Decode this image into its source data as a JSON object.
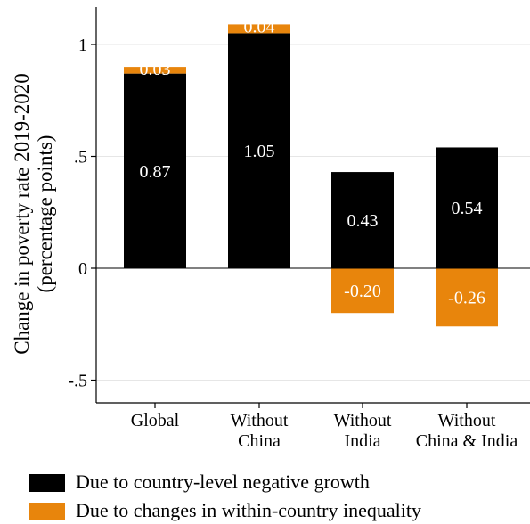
{
  "colors": {
    "negative_growth": "#000000",
    "inequality": "#e8850c",
    "bar_label": "#ffffff",
    "grid": "#e6e6e6"
  },
  "chart_data": {
    "type": "bar",
    "stacked": true,
    "title": "",
    "ylabel": [
      "Change in poverty rate 2019-2020",
      "(percentage points)"
    ],
    "xlabel": "",
    "ylim": [
      -0.6,
      1.17
    ],
    "yticks": [
      {
        "value": -0.5,
        "label": "-.5"
      },
      {
        "value": 0,
        "label": "0"
      },
      {
        "value": 0.5,
        "label": ".5"
      },
      {
        "value": 1,
        "label": "1"
      }
    ],
    "grid": true,
    "categories": [
      [
        "Global"
      ],
      [
        "Without",
        "China"
      ],
      [
        "Without",
        "India"
      ],
      [
        "Without",
        "China & India"
      ]
    ],
    "series": [
      {
        "name": "Due to country-level negative growth",
        "color": "#000000",
        "values": [
          0.87,
          1.05,
          0.43,
          0.54
        ],
        "labels": [
          "0.87",
          "1.05",
          "0.43",
          "0.54"
        ]
      },
      {
        "name": "Due to changes in within-country inequality",
        "color": "#e8850c",
        "values": [
          0.03,
          0.04,
          -0.2,
          -0.26
        ],
        "labels": [
          "0.03",
          "0.04",
          "-0.20",
          "-0.26"
        ]
      }
    ],
    "legend_position": "bottom"
  }
}
